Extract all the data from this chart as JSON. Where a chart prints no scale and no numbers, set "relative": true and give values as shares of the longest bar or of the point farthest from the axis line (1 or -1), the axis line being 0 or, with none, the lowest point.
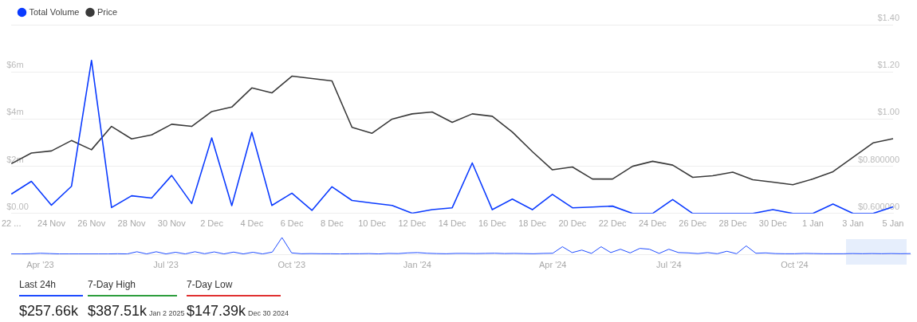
{
  "chart_data": [
    {
      "type": "line",
      "legend": "top left",
      "grid": "y",
      "marker": "none",
      "categories": [
        "22 ...",
        null,
        "24 Nov",
        null,
        "26 Nov",
        null,
        "28 Nov",
        null,
        "30 Nov",
        null,
        "2 Dec",
        null,
        "4 Dec",
        null,
        "6 Dec",
        null,
        "8 Dec",
        null,
        "10 Dec",
        null,
        "12 Dec",
        null,
        "14 Dec",
        null,
        "16 Dec",
        null,
        "18 Dec",
        null,
        "20 Dec",
        null,
        "22 Dec",
        null,
        "24 Dec",
        null,
        "26 Dec",
        null,
        "28 Dec",
        null,
        "30 Dec",
        null,
        "1 Jan",
        null,
        "3 Jan",
        null,
        "5 Jan"
      ],
      "ylim": [
        0,
        8000000
      ],
      "yticks": [
        {
          "value": 0,
          "label": "$0.00"
        },
        {
          "value": 2000000,
          "label": "$2m"
        },
        {
          "value": 4000000,
          "label": "$4m"
        },
        {
          "value": 6000000,
          "label": "$6m"
        },
        {
          "value": 8000000,
          "label": null
        }
      ],
      "y2lim": [
        0.6,
        1.4
      ],
      "y2ticks": [
        {
          "value": 0.6,
          "label": "$0.600000"
        },
        {
          "value": 0.8,
          "label": "$0.800000"
        },
        {
          "value": 1.0,
          "label": "$1.00"
        },
        {
          "value": 1.2,
          "label": "$1.20"
        },
        {
          "value": 1.4,
          "label": "$1.40"
        }
      ],
      "series": [
        {
          "name": "Total Volume",
          "color": "#0b3bff",
          "values": [
            820000,
            1360000,
            350000,
            1150000,
            6490000,
            250000,
            750000,
            650000,
            1610000,
            420000,
            3200000,
            330000,
            3440000,
            340000,
            860000,
            130000,
            1130000,
            550000,
            440000,
            340000,
            10000,
            160000,
            240000,
            2140000,
            160000,
            610000,
            160000,
            810000,
            240000,
            270000,
            310000,
            0,
            0,
            590000,
            0,
            0,
            0,
            0,
            160000,
            0,
            0,
            400000,
            0,
            0,
            280000
          ]
        },
        {
          "name": "Price",
          "color": "#3a3a3a",
          "axis": "y2",
          "values": [
            0.811,
            0.856,
            0.865,
            0.909,
            0.87,
            0.969,
            0.916,
            0.933,
            0.978,
            0.969,
            1.032,
            1.051,
            1.132,
            1.111,
            1.182,
            1.172,
            1.162,
            0.965,
            0.94,
            1.0,
            1.022,
            1.03,
            0.986,
            1.022,
            1.012,
            0.945,
            0.862,
            0.785,
            0.797,
            0.746,
            0.746,
            0.8,
            0.821,
            0.805,
            0.753,
            0.76,
            0.775,
            0.743,
            0.733,
            0.722,
            0.746,
            0.777,
            0.838,
            0.899,
            0.917
          ]
        }
      ]
    },
    {
      "type": "line",
      "relative": true,
      "tick_labels": "x",
      "marker": "none",
      "categories": [
        null,
        null,
        null,
        "Apr '23",
        null,
        null,
        null,
        null,
        null,
        null,
        null,
        null,
        null,
        null,
        null,
        null,
        "Jul '23",
        null,
        null,
        null,
        null,
        null,
        null,
        null,
        null,
        null,
        null,
        null,
        null,
        "Oct '23",
        null,
        null,
        null,
        null,
        null,
        null,
        null,
        null,
        null,
        null,
        null,
        null,
        "Jan '24",
        null,
        null,
        null,
        null,
        null,
        null,
        null,
        null,
        null,
        null,
        null,
        null,
        null,
        "Apr '24",
        null,
        null,
        null,
        null,
        null,
        null,
        null,
        null,
        null,
        null,
        null,
        "Jul '24",
        null,
        null,
        null,
        null,
        null,
        null,
        null,
        null,
        null,
        null,
        null,
        null,
        "Oct '24",
        null,
        null,
        null,
        null,
        null,
        null,
        null,
        null,
        null,
        null,
        null,
        null
      ],
      "series": [
        {
          "color": "#1f4cff",
          "values": [
            0.02,
            0.02,
            0.03,
            0.06,
            0.04,
            0.02,
            0.02,
            0.02,
            0.02,
            0.02,
            0.02,
            0.03,
            0.02,
            0.15,
            0.02,
            0.15,
            0.02,
            0.12,
            0.02,
            0.15,
            0.03,
            0.14,
            0.02,
            0.13,
            0.02,
            0.12,
            0.02,
            0.13,
            1.0,
            0.08,
            0.03,
            0.04,
            0.03,
            0.03,
            0.02,
            0.03,
            0.03,
            0.04,
            0.02,
            0.05,
            0.04,
            0.08,
            0.1,
            0.06,
            0.04,
            0.03,
            0.05,
            0.05,
            0.04,
            0.05,
            0.06,
            0.04,
            0.05,
            0.04,
            0.03,
            0.05,
            0.06,
            0.45,
            0.1,
            0.25,
            0.05,
            0.45,
            0.1,
            0.3,
            0.08,
            0.35,
            0.3,
            0.05,
            0.3,
            0.1,
            0.08,
            0.04,
            0.1,
            0.03,
            0.18,
            0.03,
            0.5,
            0.06,
            0.08,
            0.04,
            0.03,
            0.03,
            0.05,
            0.04,
            0.03,
            0.03,
            0.03,
            0.04,
            0.03,
            0.04,
            0.03,
            0.04,
            0.03,
            0.04
          ]
        }
      ]
    },
    {
      "type": "other",
      "colors": [
        "#1f4cff",
        "#2e9e3e",
        "#e03131"
      ],
      "annotations": [
        "Last 24h",
        "$257.66k",
        "7-Day High",
        "$387.51k",
        "Jan 2 2025",
        "7-Day Low",
        "$147.39k",
        "Dec 30 2024"
      ]
    }
  ]
}
